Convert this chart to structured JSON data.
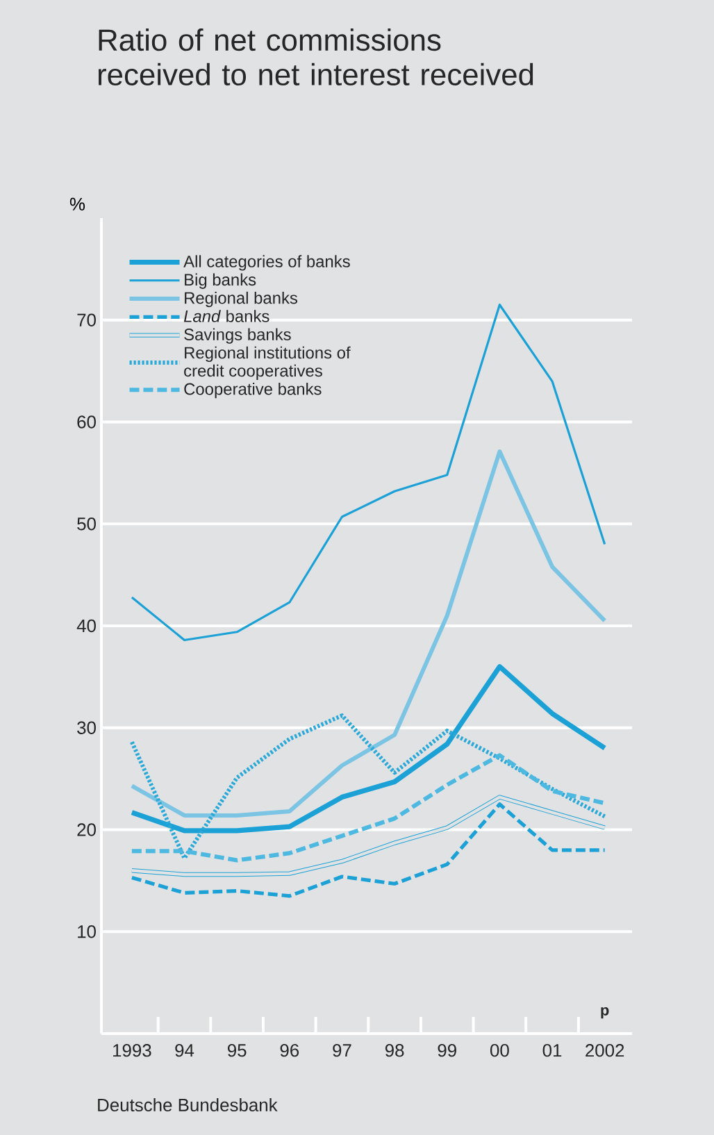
{
  "chart_data": {
    "type": "line",
    "title": "Ratio of net commissions received to net interest received",
    "ylabel": "%",
    "categories": [
      "1993",
      "94",
      "95",
      "96",
      "97",
      "98",
      "99",
      "00",
      "01",
      "2002"
    ],
    "series": [
      {
        "name": "All categories of banks",
        "color": "#1ba1d6",
        "values": [
          21.7,
          19.9,
          19.9,
          20.3,
          23.2,
          24.7,
          28.4,
          36.0,
          31.4,
          28.0
        ]
      },
      {
        "name": "Big banks",
        "color": "#1ba1d6",
        "values": [
          42.8,
          38.6,
          39.4,
          42.3,
          50.7,
          53.2,
          54.8,
          71.5,
          64.0,
          48.0
        ]
      },
      {
        "name": "Regional banks",
        "color": "#7cc4e3",
        "values": [
          24.3,
          21.4,
          21.4,
          21.8,
          26.3,
          29.3,
          41.0,
          57.1,
          45.8,
          40.5
        ]
      },
      {
        "name": "*Land* banks",
        "color": "#1ba1d6",
        "line_style": "dashed",
        "values": [
          15.3,
          13.8,
          14.0,
          13.5,
          15.4,
          14.7,
          16.6,
          22.5,
          18.0,
          18.0
        ]
      },
      {
        "name": "Savings banks",
        "color": "#1ba1d6",
        "values": [
          16.0,
          15.6,
          15.6,
          15.7,
          16.9,
          18.7,
          20.2,
          23.2,
          21.7,
          20.2
        ]
      },
      {
        "name": "Regional institutions of credit cooperatives",
        "color": "#2aa8d8",
        "line_style": "dotted",
        "values": [
          28.6,
          17.2,
          25.1,
          28.9,
          31.2,
          25.6,
          29.7,
          27.0,
          24.0,
          21.3
        ]
      },
      {
        "name": "Cooperative banks",
        "color": "#4db8e0",
        "line_style": "dashed",
        "values": [
          17.9,
          17.9,
          17.0,
          17.7,
          19.4,
          21.1,
          24.4,
          27.3,
          23.8,
          22.6
        ]
      }
    ],
    "ylim": [
      0,
      80
    ],
    "yticks": [
      10,
      20,
      30,
      40,
      50,
      60,
      70
    ],
    "grid": "y",
    "legend": "top left",
    "annotations": [
      "p",
      "Deutsche Bundesbank"
    ]
  }
}
